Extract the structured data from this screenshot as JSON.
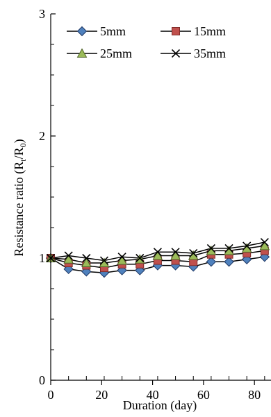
{
  "chart_data": {
    "type": "line",
    "title": "",
    "xlabel": "Duration (day)",
    "ylabel": {
      "text": "Resistance ratio (R",
      "sub1": "t",
      "mid": "/R",
      "sub2": "0",
      "end": ")"
    },
    "xlim": [
      0,
      86.5
    ],
    "ylim": [
      0,
      3
    ],
    "x_ticks": [
      0,
      20,
      40,
      60,
      80
    ],
    "x_tick_labels": [
      "0",
      "20",
      "40",
      "60",
      "80"
    ],
    "x_minor_step": 7,
    "y_ticks": [
      0,
      1,
      2,
      3
    ],
    "y_tick_labels": [
      "0",
      "1",
      "2",
      "3"
    ],
    "y_minor_step": 0.25,
    "grid": false,
    "legend_position": "top",
    "x": [
      0,
      7,
      14,
      21,
      28,
      35,
      42,
      49,
      56,
      63,
      70,
      77,
      84
    ],
    "series": [
      {
        "name": "5mm",
        "marker": "diamond",
        "color": "#4F81BD",
        "values": [
          1.0,
          0.91,
          0.89,
          0.88,
          0.9,
          0.9,
          0.94,
          0.94,
          0.93,
          0.97,
          0.97,
          0.99,
          1.01
        ]
      },
      {
        "name": "15mm",
        "marker": "square",
        "color": "#C0504D",
        "values": [
          1.0,
          0.96,
          0.94,
          0.92,
          0.95,
          0.95,
          0.98,
          0.98,
          0.97,
          1.03,
          1.03,
          1.04,
          1.06
        ]
      },
      {
        "name": "25mm",
        "marker": "triangle",
        "color": "#9BBB59",
        "values": [
          1.0,
          0.99,
          0.96,
          0.96,
          0.98,
          0.99,
          1.02,
          1.02,
          1.02,
          1.06,
          1.06,
          1.08,
          1.1
        ]
      },
      {
        "name": "35mm",
        "marker": "x",
        "color": "#000000",
        "values": [
          1.0,
          1.02,
          1.0,
          0.98,
          1.01,
          1.0,
          1.05,
          1.05,
          1.04,
          1.08,
          1.08,
          1.1,
          1.13
        ]
      }
    ]
  }
}
